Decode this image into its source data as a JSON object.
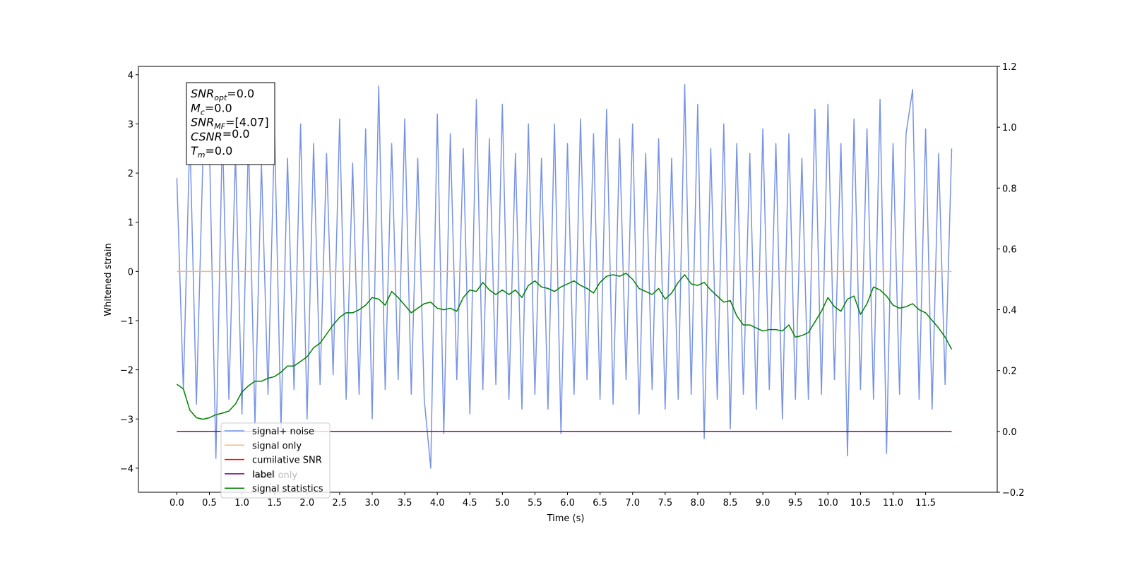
{
  "chart_data": {
    "type": "line",
    "xlabel": "Time (s)",
    "ylabel": "Whitened strain",
    "xlim": [
      -0.59,
      12.6
    ],
    "ylim": [
      -4.49,
      4.17
    ],
    "y2lim": [
      -0.2,
      1.2
    ],
    "xticks": [
      {
        "value": 0,
        "label": "0.0"
      },
      0.5,
      {
        "value": 1,
        "label": "1.0"
      },
      1.5,
      {
        "value": 2,
        "label": "2.0"
      },
      2.5,
      {
        "value": 3,
        "label": "3.0"
      },
      3.5,
      {
        "value": 4,
        "label": "4.0"
      },
      4.5,
      {
        "value": 5,
        "label": "5.0"
      },
      5.5,
      {
        "value": 6,
        "label": "6.0"
      },
      6.5,
      {
        "value": 7,
        "label": "7.0"
      },
      7.5,
      {
        "value": 8,
        "label": "8.0"
      },
      8.5,
      {
        "value": 9,
        "label": "9.0"
      },
      9.5,
      {
        "value": 10,
        "label": "10.0"
      },
      10.5,
      {
        "value": 11,
        "label": "11.0"
      },
      11.5
    ],
    "yticks": [
      {
        "value": -4,
        "label": "−4"
      },
      {
        "value": -3,
        "label": "−3"
      },
      {
        "value": -2,
        "label": "−2"
      },
      {
        "value": -1,
        "label": "−1"
      },
      0,
      1,
      2,
      3,
      4
    ],
    "y2ticks": [
      {
        "value": -0.2,
        "label": "−0.2"
      },
      {
        "value": 0,
        "label": "0.0"
      },
      0.2,
      0.4,
      0.6,
      0.8,
      {
        "value": 1,
        "label": "1.0"
      },
      1.2
    ],
    "x": [
      0.0,
      0.1,
      0.2,
      0.3,
      0.4,
      0.5,
      0.6,
      0.7,
      0.8,
      0.9,
      1.0,
      1.1,
      1.2,
      1.3,
      1.4,
      1.5,
      1.6,
      1.7,
      1.8,
      1.9,
      2.0,
      2.1,
      2.2,
      2.3,
      2.4,
      2.5,
      2.6,
      2.7,
      2.8,
      2.9,
      3.0,
      3.1,
      3.2,
      3.3,
      3.4,
      3.5,
      3.6,
      3.7,
      3.8,
      3.9,
      4.0,
      4.1,
      4.2,
      4.3,
      4.4,
      4.5,
      4.6,
      4.7,
      4.8,
      4.9,
      5.0,
      5.1,
      5.2,
      5.3,
      5.4,
      5.5,
      5.6,
      5.7,
      5.8,
      5.9,
      6.0,
      6.1,
      6.2,
      6.3,
      6.4,
      6.5,
      6.6,
      6.7,
      6.8,
      6.9,
      7.0,
      7.1,
      7.2,
      7.3,
      7.4,
      7.5,
      7.6,
      7.7,
      7.8,
      7.9,
      8.0,
      8.1,
      8.2,
      8.3,
      8.4,
      8.5,
      8.6,
      8.7,
      8.8,
      8.9,
      9.0,
      9.1,
      9.2,
      9.3,
      9.4,
      9.5,
      9.6,
      9.7,
      9.8,
      9.9,
      10.0,
      10.1,
      10.2,
      10.3,
      10.4,
      10.5,
      10.6,
      10.7,
      10.8,
      10.9,
      11.0,
      11.1,
      11.2,
      11.3,
      11.4,
      11.5,
      11.6,
      11.7,
      11.8,
      11.9
    ],
    "series": [
      {
        "name": "signal+ noise",
        "color": "#7893e6",
        "values": [
          1.9,
          -2.4,
          2.8,
          -2.7,
          2.3,
          2.6,
          -3.8,
          2.9,
          -2.6,
          2.4,
          -2.9,
          2.7,
          -3.1,
          2.2,
          -2.5,
          2.9,
          -3.2,
          2.3,
          -2.4,
          3.0,
          -3.0,
          2.6,
          -2.3,
          2.4,
          -2.1,
          3.1,
          -2.6,
          2.2,
          -2.5,
          2.9,
          -3.0,
          3.77,
          -2.4,
          2.6,
          -2.2,
          3.1,
          -2.5,
          2.3,
          -2.6,
          -4.0,
          3.2,
          -3.3,
          2.8,
          -2.2,
          2.5,
          -2.9,
          3.5,
          -2.4,
          2.7,
          -2.3,
          3.4,
          -2.6,
          2.4,
          -2.8,
          3.0,
          -2.5,
          2.3,
          -2.8,
          3.0,
          -3.3,
          2.6,
          -2.5,
          3.1,
          -2.2,
          2.8,
          -2.6,
          3.3,
          -2.7,
          2.7,
          -2.2,
          3.0,
          -2.9,
          2.4,
          -2.4,
          2.7,
          -2.8,
          2.3,
          -2.6,
          3.8,
          -2.5,
          3.4,
          -3.4,
          2.5,
          -2.6,
          3.0,
          -3.2,
          2.6,
          -2.5,
          2.4,
          -2.8,
          2.9,
          -2.4,
          2.6,
          -3.0,
          2.8,
          -2.6,
          2.3,
          -2.6,
          3.3,
          -2.5,
          3.4,
          -2.2,
          2.6,
          -3.75,
          3.1,
          -2.4,
          2.9,
          -2.6,
          3.5,
          -3.7,
          2.6,
          -2.5,
          2.8,
          3.7,
          -2.6,
          2.9,
          -2.8,
          2.4,
          -2.3,
          2.5
        ]
      },
      {
        "name": "signal only",
        "color": "#f7b877",
        "x": [
          0.0,
          11.9
        ],
        "values": [
          0,
          0
        ]
      },
      {
        "name": "cumilative SNR",
        "color": "red",
        "x": [],
        "values": []
      },
      {
        "name": "label",
        "color": "purple",
        "axis": "y2",
        "x": [
          0.0,
          11.9
        ],
        "values": [
          0,
          0
        ]
      },
      {
        "name": "signal statistics",
        "color": "green",
        "axis": "y2",
        "values": [
          0.155,
          0.14,
          0.07,
          0.045,
          0.04,
          0.045,
          0.055,
          0.06,
          0.067,
          0.09,
          0.13,
          0.15,
          0.165,
          0.165,
          0.175,
          0.18,
          0.195,
          0.215,
          0.215,
          0.23,
          0.245,
          0.275,
          0.29,
          0.32,
          0.35,
          0.375,
          0.39,
          0.39,
          0.4,
          0.415,
          0.44,
          0.435,
          0.415,
          0.46,
          0.44,
          0.415,
          0.39,
          0.405,
          0.42,
          0.425,
          0.405,
          0.4,
          0.405,
          0.395,
          0.44,
          0.465,
          0.46,
          0.49,
          0.465,
          0.45,
          0.465,
          0.45,
          0.465,
          0.44,
          0.48,
          0.495,
          0.475,
          0.47,
          0.46,
          0.475,
          0.485,
          0.495,
          0.48,
          0.47,
          0.455,
          0.49,
          0.51,
          0.515,
          0.51,
          0.52,
          0.5,
          0.47,
          0.46,
          0.45,
          0.47,
          0.435,
          0.455,
          0.49,
          0.515,
          0.485,
          0.48,
          0.49,
          0.465,
          0.445,
          0.425,
          0.43,
          0.38,
          0.35,
          0.35,
          0.34,
          0.33,
          0.335,
          0.335,
          0.33,
          0.35,
          0.31,
          0.315,
          0.325,
          0.36,
          0.395,
          0.44,
          0.41,
          0.395,
          0.435,
          0.445,
          0.385,
          0.42,
          0.475,
          0.465,
          0.445,
          0.415,
          0.405,
          0.41,
          0.42,
          0.4,
          0.39,
          0.365,
          0.34,
          0.31,
          0.27
        ]
      }
    ],
    "legend_behind": "label only",
    "stats": [
      {
        "symbol": "SNR",
        "subscript": "opt",
        "text": "=0.0"
      },
      {
        "symbol": "M",
        "subscript": "c",
        "text": "=0.0"
      },
      {
        "symbol": "SNR",
        "subscript": "MF",
        "text": "=[4.07]"
      },
      {
        "symbol": "CSNR",
        "subscript": "",
        "text": "=0.0"
      },
      {
        "symbol": "T",
        "subscript": "m",
        "text": "=0.0"
      }
    ]
  }
}
